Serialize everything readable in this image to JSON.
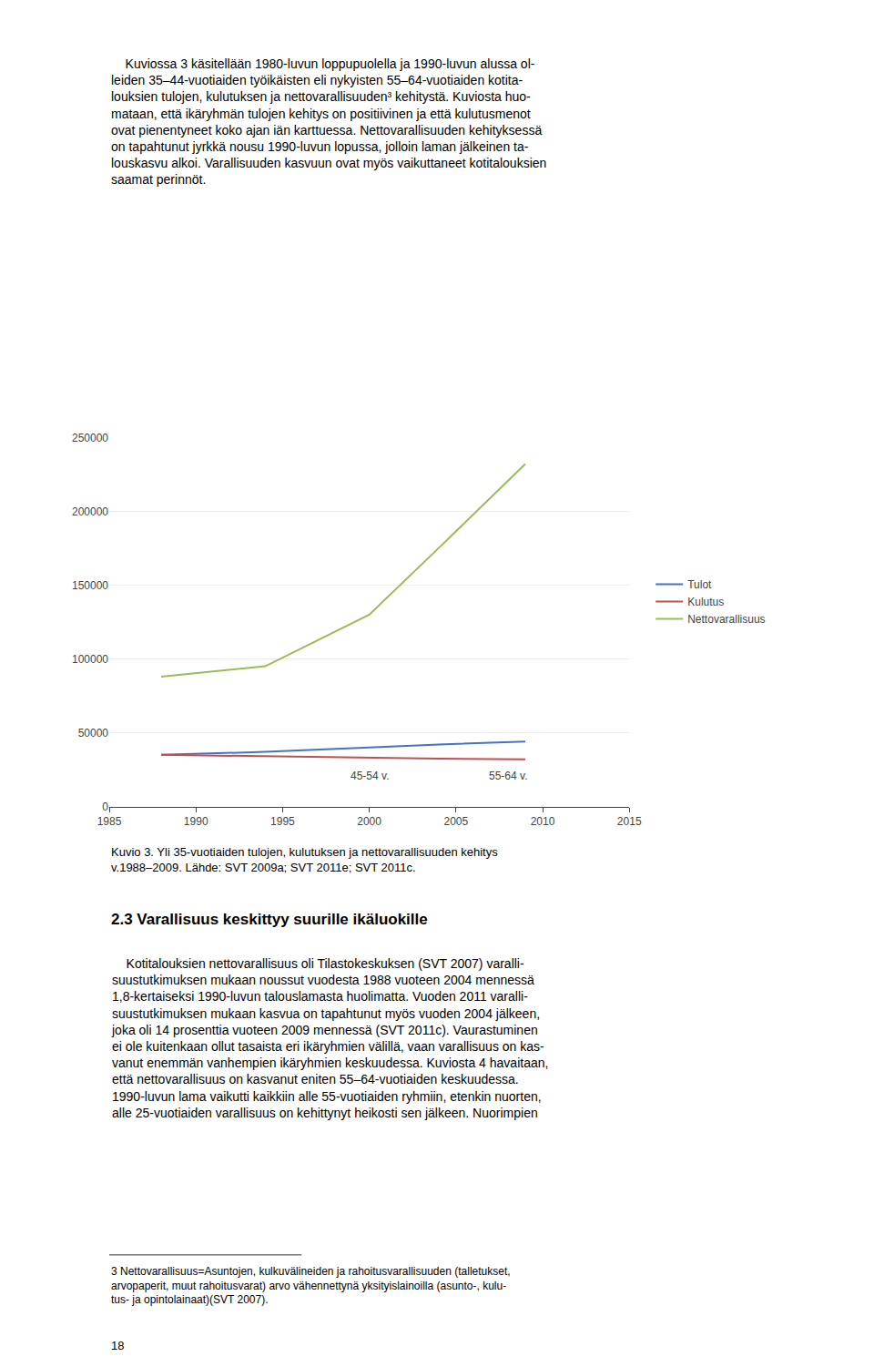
{
  "chart_data": {
    "type": "line",
    "x": [
      1988,
      1994,
      2000,
      2004,
      2009
    ],
    "series": [
      {
        "name": "Tulot",
        "color": "#4472C4",
        "values": [
          35000,
          37000,
          40000,
          42000,
          44000
        ]
      },
      {
        "name": "Kulutus",
        "color": "#C0504D",
        "values": [
          35000,
          34000,
          33000,
          32500,
          32000
        ]
      },
      {
        "name": "Nettovarallisuus",
        "color": "#9BBB59",
        "values": [
          88000,
          95000,
          130000,
          175000,
          232000
        ]
      }
    ],
    "xlim": [
      1985,
      2015
    ],
    "xticks": [
      1985,
      1990,
      1995,
      2000,
      2005,
      2010,
      2015
    ],
    "ylim": [
      0,
      250000
    ],
    "yticks": [
      0,
      50000,
      100000,
      150000,
      200000,
      250000
    ],
    "grid": "y",
    "legend": "right",
    "annotations": [
      {
        "text": "45-54 v.",
        "x": 2000,
        "y": 15000
      },
      {
        "text": "55-64 v.",
        "x": 2008,
        "y": 15000
      }
    ]
  },
  "page_text": {
    "paragraph1": [
      "    Kuviossa 3 käsitellään 1980-luvun loppupuolella ja 1990-luvun alussa ol-",
      "leiden 35–44-vuotiaiden työikäisten eli nykyisten 55–64-vuotiaiden kotita-",
      "louksien tulojen, kulutuksen ja nettovarallisuuden³ kehitystä. Kuviosta huo-",
      "mataan, että ikäryhmän tulojen kehitys on positiivinen ja että kulutusmenot",
      "ovat pienentyneet koko ajan iän karttuessa. Nettovarallisuuden kehityksessä",
      "on tapahtunut jyrkkä nousu 1990-luvun lopussa, jolloin laman jälkeinen ta-",
      "louskasvu alkoi. Varallisuuden kasvuun ovat myös vaikuttaneet kotitalouksien",
      "saamat perinnöt."
    ],
    "caption": [
      "Kuvio 3. Yli 35-vuotiaiden tulojen, kulutuksen ja nettovarallisuuden kehitys",
      "v.1988–2009. Lähde: SVT 2009a; SVT 2011e; SVT 2011c."
    ],
    "heading": "2.3 Varallisuus keskittyy suurille ikäluokille",
    "paragraph2": [
      "    Kotitalouksien nettovarallisuus oli Tilastokeskuksen (SVT 2007) varalli-",
      "suustutkimuksen mukaan noussut vuodesta 1988 vuoteen 2004 mennessä",
      "1,8-kertaiseksi 1990-luvun talouslamasta huolimatta. Vuoden 2011 varalli-",
      "suustutkimuksen mukaan kasvua on tapahtunut myös vuoden 2004 jälkeen,",
      "joka oli 14 prosenttia vuoteen 2009 mennessä (SVT 2011c). Vaurastuminen",
      "ei ole kuitenkaan ollut tasaista eri ikäryhmien välillä, vaan varallisuus on kas-",
      "vanut enemmän vanhempien ikäryhmien keskuudessa. Kuviosta 4 havaitaan,",
      "että nettovarallisuus on kasvanut eniten 55–64-vuotiaiden keskuudessa.",
      "1990-luvun lama vaikutti kaikkiin alle 55-vuotiaiden ryhmiin, etenkin nuorten,",
      "alle 25-vuotiaiden varallisuus on kehittynyt heikosti sen jälkeen. Nuorimpien"
    ],
    "footnote": [
      "3 Nettovarallisuus=Asuntojen, kulkuvälineiden ja rahoitusvarallisuuden (talletukset,",
      "arvopaperit, muut rahoitusvarat) arvo vähennettynä yksityislainoilla (asunto-, kulu-",
      "tus- ja opintolainaat)(SVT 2007)."
    ],
    "page_number": "18"
  }
}
